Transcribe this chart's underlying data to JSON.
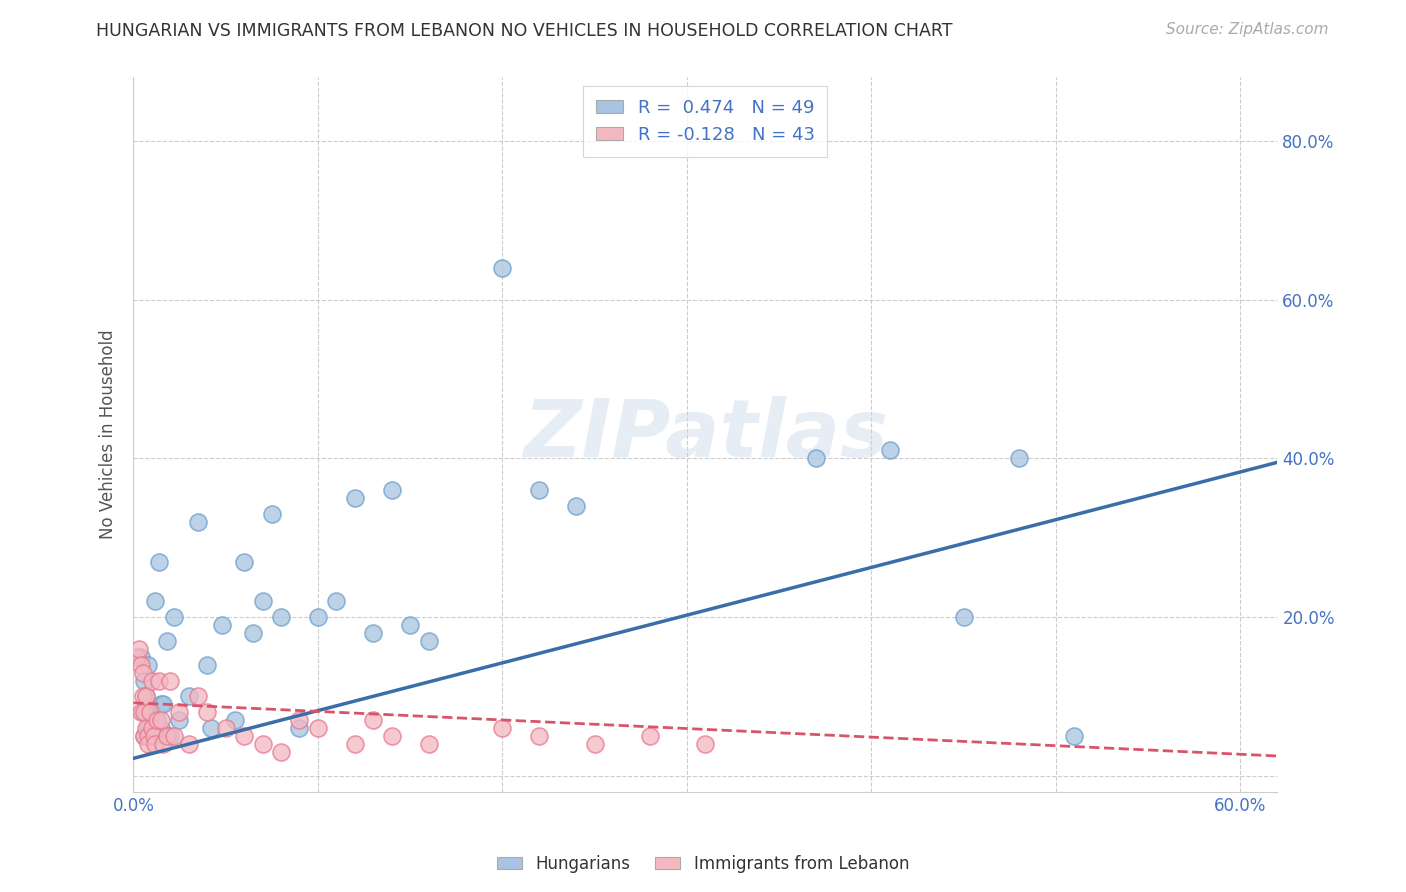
{
  "title": "HUNGARIAN VS IMMIGRANTS FROM LEBANON NO VEHICLES IN HOUSEHOLD CORRELATION CHART",
  "source": "Source: ZipAtlas.com",
  "ylabel": "No Vehicles in Household",
  "xlim": [
    0.0,
    0.62
  ],
  "ylim": [
    -0.02,
    0.88
  ],
  "blue_R": 0.474,
  "blue_N": 49,
  "pink_R": -0.128,
  "pink_N": 43,
  "blue_color": "#a8c4e0",
  "pink_color": "#f4b8c1",
  "blue_edge_color": "#6fa0cc",
  "pink_edge_color": "#e87a90",
  "blue_line_color": "#3a6ea8",
  "pink_line_color": "#d9546a",
  "watermark": "ZIPatlas",
  "blue_scatter_x": [
    0.004,
    0.005,
    0.006,
    0.006,
    0.007,
    0.007,
    0.008,
    0.008,
    0.009,
    0.01,
    0.01,
    0.011,
    0.012,
    0.013,
    0.014,
    0.015,
    0.015,
    0.016,
    0.018,
    0.02,
    0.022,
    0.025,
    0.03,
    0.035,
    0.04,
    0.042,
    0.048,
    0.055,
    0.06,
    0.065,
    0.07,
    0.075,
    0.08,
    0.09,
    0.1,
    0.11,
    0.12,
    0.13,
    0.14,
    0.15,
    0.16,
    0.2,
    0.22,
    0.24,
    0.37,
    0.41,
    0.45,
    0.48,
    0.51
  ],
  "blue_scatter_y": [
    0.15,
    0.08,
    0.12,
    0.05,
    0.08,
    0.1,
    0.06,
    0.14,
    0.05,
    0.08,
    0.05,
    0.07,
    0.22,
    0.07,
    0.27,
    0.06,
    0.09,
    0.09,
    0.17,
    0.05,
    0.2,
    0.07,
    0.1,
    0.32,
    0.14,
    0.06,
    0.19,
    0.07,
    0.27,
    0.18,
    0.22,
    0.33,
    0.2,
    0.06,
    0.2,
    0.22,
    0.35,
    0.18,
    0.36,
    0.19,
    0.17,
    0.64,
    0.36,
    0.34,
    0.4,
    0.41,
    0.2,
    0.4,
    0.05
  ],
  "pink_scatter_x": [
    0.002,
    0.003,
    0.004,
    0.004,
    0.005,
    0.005,
    0.006,
    0.006,
    0.007,
    0.007,
    0.008,
    0.008,
    0.009,
    0.01,
    0.01,
    0.011,
    0.012,
    0.013,
    0.014,
    0.015,
    0.016,
    0.018,
    0.02,
    0.022,
    0.025,
    0.03,
    0.035,
    0.04,
    0.05,
    0.06,
    0.07,
    0.08,
    0.09,
    0.1,
    0.12,
    0.13,
    0.14,
    0.16,
    0.2,
    0.22,
    0.25,
    0.28,
    0.31
  ],
  "pink_scatter_y": [
    0.15,
    0.16,
    0.08,
    0.14,
    0.1,
    0.13,
    0.05,
    0.08,
    0.06,
    0.1,
    0.05,
    0.04,
    0.08,
    0.06,
    0.12,
    0.05,
    0.04,
    0.07,
    0.12,
    0.07,
    0.04,
    0.05,
    0.12,
    0.05,
    0.08,
    0.04,
    0.1,
    0.08,
    0.06,
    0.05,
    0.04,
    0.03,
    0.07,
    0.06,
    0.04,
    0.07,
    0.05,
    0.04,
    0.06,
    0.05,
    0.04,
    0.05,
    0.04
  ],
  "blue_line_y_start": 0.022,
  "blue_line_y_end": 0.395,
  "pink_line_y_start": 0.092,
  "pink_line_y_end": 0.025
}
